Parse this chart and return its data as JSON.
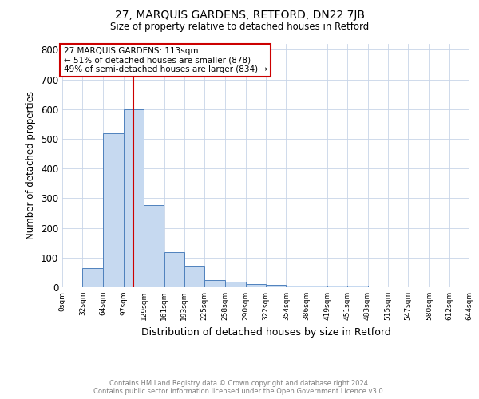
{
  "title": "27, MARQUIS GARDENS, RETFORD, DN22 7JB",
  "subtitle": "Size of property relative to detached houses in Retford",
  "xlabel": "Distribution of detached houses by size in Retford",
  "ylabel": "Number of detached properties",
  "annotation_line1": "27 MARQUIS GARDENS: 113sqm",
  "annotation_line2": "← 51% of detached houses are smaller (878)",
  "annotation_line3": "49% of semi-detached houses are larger (834) →",
  "red_line_x": 113,
  "bar_edges": [
    0,
    32,
    64,
    97,
    129,
    161,
    193,
    225,
    258,
    290,
    322,
    354,
    386,
    419,
    451,
    483,
    515,
    547,
    580,
    612,
    644
  ],
  "bar_heights": [
    0,
    65,
    520,
    600,
    278,
    117,
    73,
    25,
    18,
    10,
    8,
    5,
    5,
    5,
    5,
    0,
    0,
    0,
    0,
    0
  ],
  "bar_color": "#c6d9f0",
  "bar_edge_color": "#4f81bd",
  "red_line_color": "#cc0000",
  "grid_color": "#c8d4e8",
  "background_color": "#ffffff",
  "footer_line1": "Contains HM Land Registry data © Crown copyright and database right 2024.",
  "footer_line2": "Contains public sector information licensed under the Open Government Licence v3.0.",
  "ylim_max": 820,
  "xlim_left": 0,
  "xlim_right": 644,
  "yticks": [
    0,
    100,
    200,
    300,
    400,
    500,
    600,
    700,
    800
  ],
  "fig_width": 6.0,
  "fig_height": 5.0,
  "dpi": 100
}
